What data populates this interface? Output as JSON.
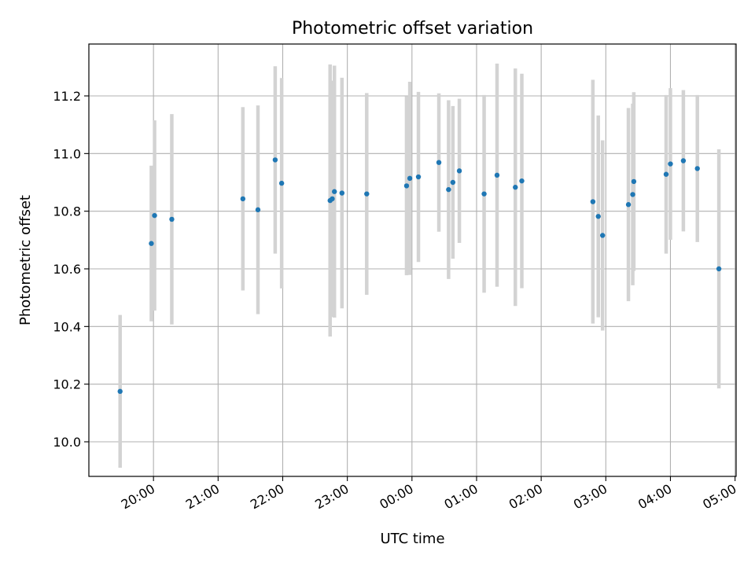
{
  "chart_data": {
    "type": "scatter",
    "title": "Photometric offset variation",
    "xlabel": "UTC time",
    "ylabel": "Photometric offset",
    "x_axis": "UTC time, day 1 = evening, day 2 = after midnight",
    "xlim": [
      "1 19:00",
      "2 05:01"
    ],
    "ylim": [
      9.88,
      11.38
    ],
    "x_ticks": [
      {
        "t": "1 20:00",
        "label": "20:00"
      },
      {
        "t": "1 21:00",
        "label": "21:00"
      },
      {
        "t": "1 22:00",
        "label": "22:00"
      },
      {
        "t": "1 23:00",
        "label": "23:00"
      },
      {
        "t": "2 00:00",
        "label": "00:00"
      },
      {
        "t": "2 01:00",
        "label": "01:00"
      },
      {
        "t": "2 02:00",
        "label": "02:00"
      },
      {
        "t": "2 03:00",
        "label": "03:00"
      },
      {
        "t": "2 04:00",
        "label": "04:00"
      },
      {
        "t": "2 05:00",
        "label": "05:00"
      }
    ],
    "y_ticks": [
      {
        "v": 10.0,
        "label": "10.0"
      },
      {
        "v": 10.2,
        "label": "10.2"
      },
      {
        "v": 10.4,
        "label": "10.4"
      },
      {
        "v": 10.6,
        "label": "10.6"
      },
      {
        "v": 10.8,
        "label": "10.8"
      },
      {
        "v": 11.0,
        "label": "11.0"
      },
      {
        "v": 11.2,
        "label": "11.2"
      }
    ],
    "grid": true,
    "point_color": "#1f77b4",
    "errorbar_color": "#d3d3d3",
    "points": [
      {
        "t": "1 19:29",
        "y": 10.175,
        "err": 0.265
      },
      {
        "t": "1 19:58",
        "y": 10.688,
        "err": 0.27
      },
      {
        "t": "1 20:01",
        "y": 10.785,
        "err": 0.33
      },
      {
        "t": "1 20:17",
        "y": 10.772,
        "err": 0.365
      },
      {
        "t": "1 21:23",
        "y": 10.843,
        "err": 0.318
      },
      {
        "t": "1 21:37",
        "y": 10.805,
        "err": 0.362
      },
      {
        "t": "1 21:53",
        "y": 10.978,
        "err": 0.325
      },
      {
        "t": "1 21:59",
        "y": 10.897,
        "err": 0.365
      },
      {
        "t": "1 22:44",
        "y": 10.837,
        "err": 0.472
      },
      {
        "t": "1 22:46",
        "y": 10.843,
        "err": 0.41
      },
      {
        "t": "1 22:48",
        "y": 10.868,
        "err": 0.437
      },
      {
        "t": "1 22:55",
        "y": 10.863,
        "err": 0.4
      },
      {
        "t": "1 23:18",
        "y": 10.86,
        "err": 0.35
      },
      {
        "t": "1 23:55",
        "y": 10.888,
        "err": 0.31
      },
      {
        "t": "1 23:58",
        "y": 10.914,
        "err": 0.335
      },
      {
        "t": "2 00:06",
        "y": 10.919,
        "err": 0.295
      },
      {
        "t": "2 00:25",
        "y": 10.969,
        "err": 0.24
      },
      {
        "t": "2 00:34",
        "y": 10.875,
        "err": 0.31
      },
      {
        "t": "2 00:38",
        "y": 10.9,
        "err": 0.265
      },
      {
        "t": "2 00:44",
        "y": 10.94,
        "err": 0.25
      },
      {
        "t": "2 01:07",
        "y": 10.86,
        "err": 0.343
      },
      {
        "t": "2 01:19",
        "y": 10.925,
        "err": 0.387
      },
      {
        "t": "2 01:36",
        "y": 10.883,
        "err": 0.412
      },
      {
        "t": "2 01:42",
        "y": 10.905,
        "err": 0.372
      },
      {
        "t": "2 02:48",
        "y": 10.833,
        "err": 0.423
      },
      {
        "t": "2 02:53",
        "y": 10.782,
        "err": 0.35
      },
      {
        "t": "2 02:57",
        "y": 10.716,
        "err": 0.33
      },
      {
        "t": "2 03:21",
        "y": 10.823,
        "err": 0.335
      },
      {
        "t": "2 03:25",
        "y": 10.858,
        "err": 0.315
      },
      {
        "t": "2 03:26",
        "y": 10.903,
        "err": 0.31
      },
      {
        "t": "2 03:56",
        "y": 10.928,
        "err": 0.275
      },
      {
        "t": "2 04:00",
        "y": 10.964,
        "err": 0.263
      },
      {
        "t": "2 04:12",
        "y": 10.975,
        "err": 0.245
      },
      {
        "t": "2 04:25",
        "y": 10.948,
        "err": 0.255
      },
      {
        "t": "2 04:45",
        "y": 10.6,
        "err": 0.415
      }
    ]
  }
}
